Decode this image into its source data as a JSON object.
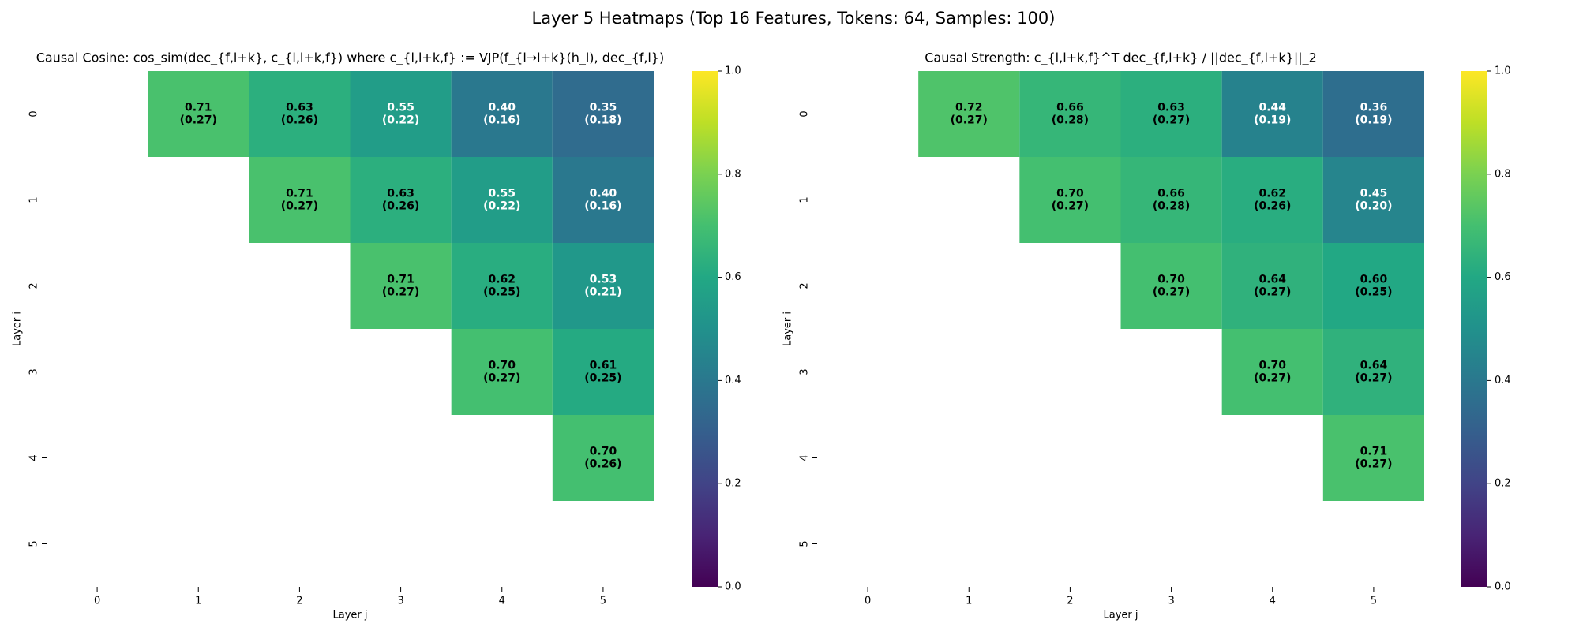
{
  "title": "Layer 5 Heatmaps (Top 16 Features, Tokens: 64, Samples: 100)",
  "chart_data": [
    {
      "type": "heatmap",
      "title": "Causal Cosine: cos_sim(dec_{f,l+k}, c_{l,l+k,f}) where c_{l,l+k,f} := VJP(f_{l→l+k}(h_l), dec_{f,l})",
      "x_label": "Layer j",
      "y_label": "Layer i",
      "categories": [
        "0",
        "1",
        "2",
        "3",
        "4",
        "5"
      ],
      "y_categories": [
        "0",
        "1",
        "2",
        "3",
        "4",
        "5"
      ],
      "values": [
        [
          null,
          0.71,
          0.63,
          0.55,
          0.4,
          0.35
        ],
        [
          null,
          null,
          0.71,
          0.63,
          0.55,
          0.4
        ],
        [
          null,
          null,
          null,
          0.71,
          0.62,
          0.53
        ],
        [
          null,
          null,
          null,
          null,
          0.7,
          0.61
        ],
        [
          null,
          null,
          null,
          null,
          null,
          0.7
        ],
        [
          null,
          null,
          null,
          null,
          null,
          null
        ]
      ],
      "value_labels": [
        [
          null,
          "0.71",
          "0.63",
          "0.55",
          "0.40",
          "0.35"
        ],
        [
          null,
          null,
          "0.71",
          "0.63",
          "0.55",
          "0.40"
        ],
        [
          null,
          null,
          null,
          "0.71",
          "0.62",
          "0.53"
        ],
        [
          null,
          null,
          null,
          null,
          "0.70",
          "0.61"
        ],
        [
          null,
          null,
          null,
          null,
          null,
          "0.70"
        ],
        [
          null,
          null,
          null,
          null,
          null,
          null
        ]
      ],
      "errors": [
        [
          null,
          0.27,
          0.26,
          0.22,
          0.16,
          0.18
        ],
        [
          null,
          null,
          0.27,
          0.26,
          0.22,
          0.16
        ],
        [
          null,
          null,
          null,
          0.27,
          0.25,
          0.21
        ],
        [
          null,
          null,
          null,
          null,
          0.27,
          0.25
        ],
        [
          null,
          null,
          null,
          null,
          null,
          0.26
        ],
        [
          null,
          null,
          null,
          null,
          null,
          null
        ]
      ],
      "error_labels": [
        [
          null,
          "(0.27)",
          "(0.26)",
          "(0.22)",
          "(0.16)",
          "(0.18)"
        ],
        [
          null,
          null,
          "(0.27)",
          "(0.26)",
          "(0.22)",
          "(0.16)"
        ],
        [
          null,
          null,
          null,
          "(0.27)",
          "(0.25)",
          "(0.21)"
        ],
        [
          null,
          null,
          null,
          null,
          "(0.27)",
          "(0.25)"
        ],
        [
          null,
          null,
          null,
          null,
          null,
          "(0.26)"
        ],
        [
          null,
          null,
          null,
          null,
          null,
          null
        ]
      ],
      "colormap": "viridis",
      "zlim": [
        0,
        1
      ],
      "zticks": [
        {
          "value": 0,
          "label": "0.0"
        },
        0.2,
        0.4,
        0.6,
        0.8,
        {
          "value": 1,
          "label": "1.0"
        }
      ]
    },
    {
      "type": "heatmap",
      "title": "Causal Strength: c_{l,l+k,f}^T dec_{f,l+k} / ||dec_{f,l+k}||_2",
      "x_label": "Layer j",
      "y_label": "Layer i",
      "categories": [
        "0",
        "1",
        "2",
        "3",
        "4",
        "5"
      ],
      "y_categories": [
        "0",
        "1",
        "2",
        "3",
        "4",
        "5"
      ],
      "values": [
        [
          null,
          0.72,
          0.66,
          0.63,
          0.44,
          0.36
        ],
        [
          null,
          null,
          0.7,
          0.66,
          0.62,
          0.45
        ],
        [
          null,
          null,
          null,
          0.7,
          0.64,
          0.6
        ],
        [
          null,
          null,
          null,
          null,
          0.7,
          0.64
        ],
        [
          null,
          null,
          null,
          null,
          null,
          0.71
        ],
        [
          null,
          null,
          null,
          null,
          null,
          null
        ]
      ],
      "value_labels": [
        [
          null,
          "0.72",
          "0.66",
          "0.63",
          "0.44",
          "0.36"
        ],
        [
          null,
          null,
          "0.70",
          "0.66",
          "0.62",
          "0.45"
        ],
        [
          null,
          null,
          null,
          "0.70",
          "0.64",
          "0.60"
        ],
        [
          null,
          null,
          null,
          null,
          "0.70",
          "0.64"
        ],
        [
          null,
          null,
          null,
          null,
          null,
          "0.71"
        ],
        [
          null,
          null,
          null,
          null,
          null,
          null
        ]
      ],
      "errors": [
        [
          null,
          0.27,
          0.28,
          0.27,
          0.19,
          0.19
        ],
        [
          null,
          null,
          0.27,
          0.28,
          0.26,
          0.2
        ],
        [
          null,
          null,
          null,
          0.27,
          0.27,
          0.25
        ],
        [
          null,
          null,
          null,
          null,
          0.27,
          0.27
        ],
        [
          null,
          null,
          null,
          null,
          null,
          0.27
        ],
        [
          null,
          null,
          null,
          null,
          null,
          null
        ]
      ],
      "error_labels": [
        [
          null,
          "(0.27)",
          "(0.28)",
          "(0.27)",
          "(0.19)",
          "(0.19)"
        ],
        [
          null,
          null,
          "(0.27)",
          "(0.28)",
          "(0.26)",
          "(0.20)"
        ],
        [
          null,
          null,
          null,
          "(0.27)",
          "(0.27)",
          "(0.25)"
        ],
        [
          null,
          null,
          null,
          null,
          "(0.27)",
          "(0.27)"
        ],
        [
          null,
          null,
          null,
          null,
          null,
          "(0.27)"
        ],
        [
          null,
          null,
          null,
          null,
          null,
          null
        ]
      ],
      "colormap": "viridis",
      "zlim": [
        0,
        1
      ],
      "zticks": [
        {
          "value": 0,
          "label": "0.0"
        },
        0.2,
        0.4,
        0.6,
        0.8,
        {
          "value": 1,
          "label": "1.0"
        }
      ]
    }
  ]
}
